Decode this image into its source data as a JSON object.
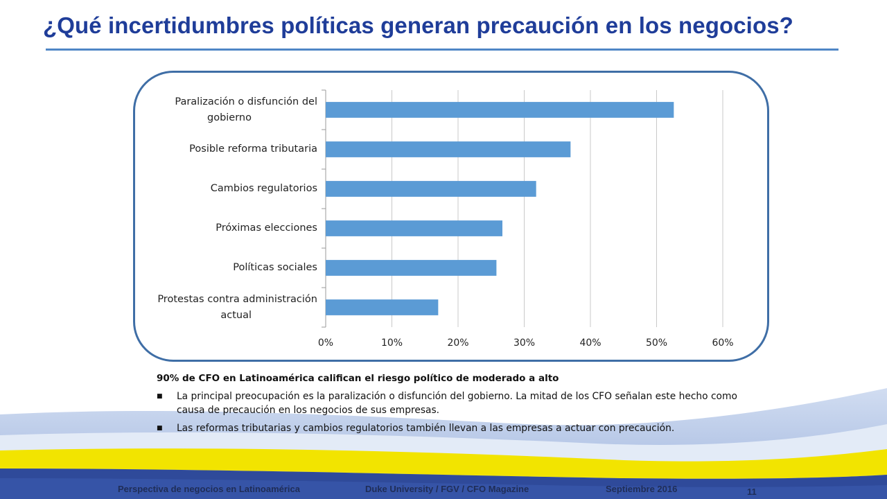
{
  "slide": {
    "title": "¿Qué incertidumbres políticas generan precaución en los negocios?",
    "page_number": "11"
  },
  "chart_data": {
    "type": "bar",
    "orientation": "horizontal",
    "categories": [
      "Paralización o disfunción del gobierno",
      "Posible reforma tributaria",
      "Cambios regulatorios",
      "Próximas elecciones",
      "Políticas sociales",
      "Protestas contra administración actual"
    ],
    "category_lines": [
      [
        "Paralización o disfunción del",
        "gobierno"
      ],
      [
        "Posible reforma tributaria"
      ],
      [
        "Cambios regulatorios"
      ],
      [
        "Próximas elecciones"
      ],
      [
        "Políticas sociales"
      ],
      [
        "Protestas contra administración",
        "actual"
      ]
    ],
    "values": [
      52.6,
      37.0,
      31.8,
      26.7,
      25.8,
      17.0
    ],
    "xlim": [
      0,
      60
    ],
    "xticks": [
      "0%",
      "10%",
      "20%",
      "30%",
      "40%",
      "50%",
      "60%"
    ],
    "grid": true,
    "bar_color": "#5b9bd5",
    "title": "",
    "xlabel": "",
    "ylabel": ""
  },
  "notes": {
    "headline": "90% de CFO en Latinoamérica califican el riesgo político de moderado a alto",
    "bullet_symbol": "■",
    "bullets": [
      "La principal preocupación es la paralización o disfunción del gobierno. La mitad de los CFO señalan este hecho como causa de precaución en los negocios de sus empresas.",
      "Las reformas tributarias y cambios regulatorios también llevan a las empresas a actuar con precaución."
    ]
  },
  "footer": {
    "left": "Perspectiva de negocios en Latinoamérica",
    "center": "Duke University / FGV / CFO Magazine",
    "right": "Septiembre 2016"
  },
  "colors": {
    "title": "#1f3d99",
    "frame": "#3f6ea6",
    "band_yellow": "#f2e400",
    "band_blue": "#2f4a9a"
  }
}
